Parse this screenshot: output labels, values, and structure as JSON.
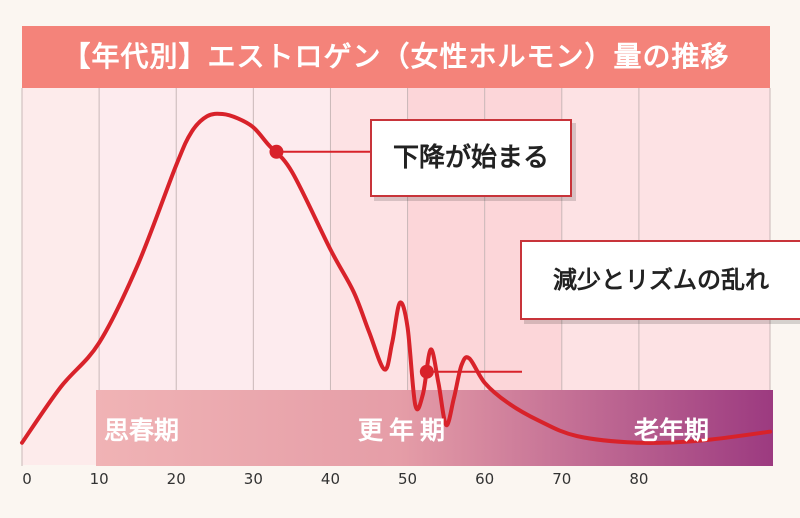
{
  "title": "【年代別】エストロゲン（女性ホルモン）量の推移",
  "callouts": {
    "decline": "下降が始まる",
    "fluctuation": "減少とリズムの乱れ"
  },
  "stages": {
    "puberty": "思春期",
    "menopause": "更年期",
    "senior": "老年期"
  },
  "colors": {
    "title_bg": "#f4837a",
    "curve": "#d8222a",
    "stage_start": "#f0b3b5",
    "stage_end": "#9c3a80"
  },
  "chart_data": {
    "type": "line",
    "x_ticks": [
      0,
      10,
      20,
      30,
      40,
      50,
      60,
      70,
      80
    ],
    "xlim": [
      0,
      97
    ],
    "series": [
      {
        "x": [
          0,
          5,
          10,
          15,
          20,
          22,
          24,
          26,
          28,
          30,
          32,
          35,
          40,
          43,
          45,
          47,
          48,
          49,
          50,
          51,
          52,
          53,
          54,
          55,
          56,
          57,
          58,
          60,
          63,
          67,
          72,
          80,
          88,
          97
        ],
        "y": [
          0.1,
          0.35,
          0.55,
          0.9,
          1.35,
          1.5,
          1.57,
          1.58,
          1.56,
          1.52,
          1.44,
          1.32,
          0.97,
          0.78,
          0.6,
          0.43,
          0.55,
          0.73,
          0.62,
          0.27,
          0.32,
          0.52,
          0.37,
          0.18,
          0.3,
          0.45,
          0.48,
          0.37,
          0.28,
          0.2,
          0.13,
          0.1,
          0.11,
          0.15
        ]
      }
    ],
    "markers": [
      {
        "x": 33,
        "y": 1.41
      },
      {
        "x": 52.5,
        "y": 0.42
      }
    ],
    "bands": [
      {
        "from": 10,
        "to": 20
      },
      {
        "from": 20,
        "to": 30
      },
      {
        "from": 30,
        "to": 40
      },
      {
        "from": 40,
        "to": 50
      },
      {
        "from": 50,
        "to": 60
      },
      {
        "from": 60,
        "to": 70
      },
      {
        "from": 70,
        "to": 80
      },
      {
        "from": 80,
        "to": 97
      }
    ]
  }
}
